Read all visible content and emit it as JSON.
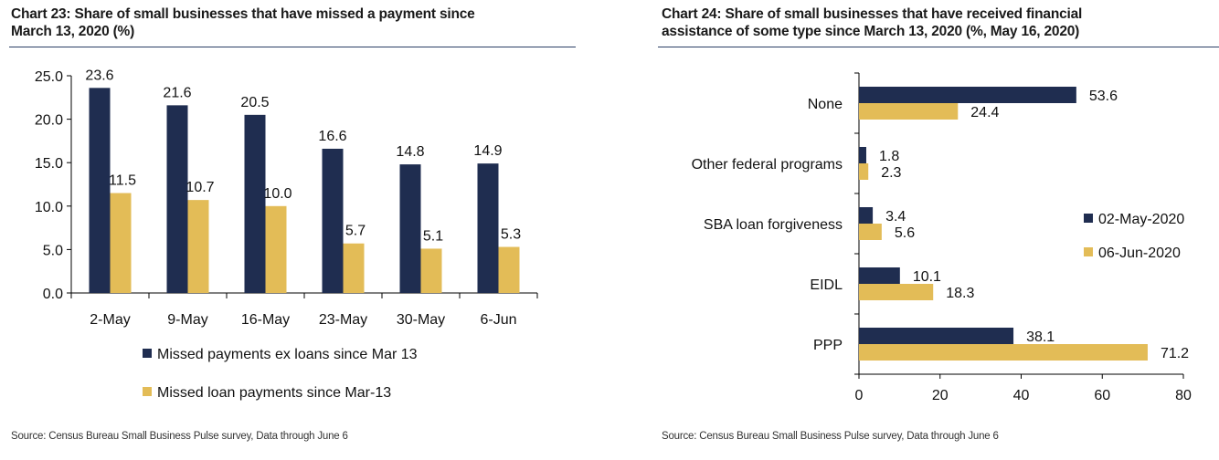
{
  "colors": {
    "navy": "#1f2d50",
    "gold": "#e3bc57",
    "rule": "#2b3f66"
  },
  "chart_data": [
    {
      "type": "bar",
      "title": "Chart 23: Share of small businesses that have missed a payment since\nMarch 13, 2020 (%)",
      "categories": [
        "2-May",
        "9-May",
        "16-May",
        "23-May",
        "30-May",
        "6-Jun"
      ],
      "series": [
        {
          "name": "Missed payments ex loans since Mar 13",
          "values": [
            23.6,
            21.6,
            20.5,
            16.6,
            14.8,
            14.9
          ],
          "color": "#1f2d50"
        },
        {
          "name": "Missed loan payments since Mar-13",
          "values": [
            11.5,
            10.7,
            10.0,
            5.7,
            5.1,
            5.3
          ],
          "color": "#e3bc57"
        }
      ],
      "ylim": [
        0,
        25
      ],
      "yticks": [
        "0.0",
        "5.0",
        "10.0",
        "15.0",
        "20.0",
        "25.0"
      ],
      "value_labels": [
        [
          "23.6",
          "21.6",
          "20.5",
          "16.6",
          "14.8",
          "14.9"
        ],
        [
          "11.5",
          "10.7",
          "10.0",
          "5.7",
          "5.1",
          "5.3"
        ]
      ],
      "legend_position": "bottom",
      "grid": false,
      "source": "Source: Census Bureau Small Business Pulse survey, Data through June 6"
    },
    {
      "type": "bar",
      "orientation": "horizontal",
      "title": "Chart 24: Share of small businesses that have received financial\nassistance of some type since March 13, 2020 (%, May 16, 2020)",
      "categories": [
        "None",
        "Other federal programs",
        "SBA loan forgiveness",
        "EIDL",
        "PPP"
      ],
      "series": [
        {
          "name": "02-May-2020",
          "values": [
            53.6,
            1.8,
            3.4,
            10.1,
            38.1
          ],
          "color": "#1f2d50"
        },
        {
          "name": "06-Jun-2020",
          "values": [
            24.4,
            2.3,
            5.6,
            18.3,
            71.2
          ],
          "color": "#e3bc57"
        }
      ],
      "xlim": [
        0,
        80
      ],
      "xticks": [
        "0",
        "20",
        "40",
        "60",
        "80"
      ],
      "value_labels": [
        [
          "53.6",
          "1.8",
          "3.4",
          "10.1",
          "38.1"
        ],
        [
          "24.4",
          "2.3",
          "5.6",
          "18.3",
          "71.2"
        ]
      ],
      "legend_position": "right",
      "grid": false,
      "source": "Source: Census Bureau Small Business Pulse survey, Data through June 6"
    }
  ]
}
